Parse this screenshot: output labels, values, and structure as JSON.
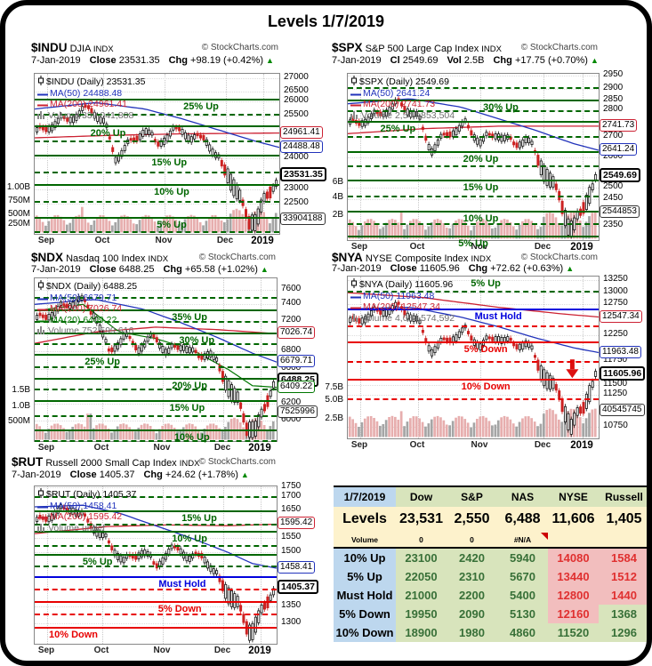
{
  "title": "Levels 1/7/2019",
  "colors": {
    "level_up": "#006600",
    "level_down": "#e80000",
    "must_hold": "#0000dd",
    "ma50": "#2233bb",
    "ma200": "#cc2233",
    "ma20": "#007700",
    "candle_down": "#cc2222",
    "vol_pink": "#e7aeae",
    "vol_gray": "#a5a5a5",
    "table_green_text": "#387038",
    "table_red_text": "#e03030",
    "table_green_bg": "#d8e4bc",
    "table_red_bg": "#f2bebe",
    "table_blue_bg": "#bdd7ee",
    "table_yellow_bg": "#fdf2cc"
  },
  "charts": [
    {
      "symbol": "$INDU",
      "name": "DJIA",
      "suffix": "INDX",
      "credit": "© StockCharts.com",
      "date": "7-Jan-2019",
      "stats": [
        {
          "label": "Close",
          "value": "23531.35"
        },
        {
          "label": "Chg",
          "value": "+98.19 (+0.42%)"
        }
      ],
      "arrow": "▲",
      "legend": [
        {
          "text": "$INDU (Daily) 23531.35",
          "color": "#000000",
          "icon": "candlestick-icon"
        },
        {
          "text": "MA(50) 24488.48",
          "color": "#2233bb",
          "icon": "ma-line-icon"
        },
        {
          "text": "MA(200) 24961.41",
          "color": "#cc2233",
          "icon": "ma-line-icon"
        },
        {
          "text": "Volume 339,041,888",
          "color": "#707070",
          "icon": "volume-icon"
        }
      ],
      "levels": [
        {
          "label": "25% Up"
        },
        {
          "label": "20% Up"
        },
        {
          "label": "15% Up"
        },
        {
          "label": "10% Up"
        },
        {
          "label": "5% Up"
        }
      ],
      "yticks": [
        "27000",
        "26500",
        "26000",
        "25500",
        "24000",
        "23000",
        "22500"
      ],
      "callouts": [
        {
          "text": "24961.41",
          "color": "#cc2233"
        },
        {
          "text": "24488.48",
          "color": "#2233bb"
        },
        {
          "text": "23531.35",
          "color": "#000000",
          "bold": true
        },
        {
          "text": "33904188",
          "color": "#333333"
        }
      ],
      "vticks": [
        "1.00B",
        "750M",
        "500M",
        "250M"
      ],
      "xticks": [
        "Sep",
        "Oct",
        "Nov",
        "Dec",
        "2019"
      ]
    },
    {
      "symbol": "$SPX",
      "name": "S&P 500 Large Cap Index",
      "suffix": "INDX",
      "credit": "© StockCharts.com",
      "date": "7-Jan-2019",
      "stats": [
        {
          "label": "Cl",
          "value": "2549.69"
        },
        {
          "label": "Vol",
          "value": "2.5B"
        },
        {
          "label": "Chg",
          "value": "+17.75 (+0.70%)"
        }
      ],
      "arrow": "▲",
      "legend": [
        {
          "text": "$SPX (Daily) 2549.69",
          "color": "#000000",
          "icon": "candlestick-icon"
        },
        {
          "text": "MA(50) 2641.24",
          "color": "#2233bb",
          "icon": "ma-line-icon"
        },
        {
          "text": "MA(200) 2741.73",
          "color": "#cc2233",
          "icon": "ma-line-icon"
        },
        {
          "text": "Volume 2,544,853,504",
          "color": "#707070",
          "icon": "volume-icon"
        }
      ],
      "levels": [
        {
          "label": "30% Up"
        },
        {
          "label": "25% Up"
        },
        {
          "label": "20% Up"
        },
        {
          "label": "15% Up"
        },
        {
          "label": "10% Up"
        },
        {
          "label": "5% Up"
        }
      ],
      "yticks": [
        "2950",
        "2900",
        "2850",
        "2800",
        "2700",
        "2600",
        "2500",
        "2450",
        "2350"
      ],
      "callouts": [
        {
          "text": "2741.73",
          "color": "#cc2233"
        },
        {
          "text": "2641.24",
          "color": "#2233bb"
        },
        {
          "text": "2549.69",
          "color": "#000000",
          "bold": true
        },
        {
          "text": "2544853",
          "color": "#333333"
        }
      ],
      "vticks": [
        "6B",
        "4B",
        "2B"
      ],
      "xticks": [
        "Sep",
        "Oct",
        "Nov",
        "Dec",
        "2019"
      ]
    },
    {
      "symbol": "$NDX",
      "name": "Nasdaq 100 Index",
      "suffix": "INDX",
      "credit": "© StockCharts.com",
      "date": "7-Jan-2019",
      "stats": [
        {
          "label": "Close",
          "value": "6488.25"
        },
        {
          "label": "Chg",
          "value": "+65.58 (+1.02%)"
        }
      ],
      "arrow": "▲",
      "legend": [
        {
          "text": "$NDX (Daily) 6488.25",
          "color": "#000000",
          "icon": "candlestick-icon"
        },
        {
          "text": "MA(50) 6679.71",
          "color": "#2233bb",
          "icon": "ma-line-icon"
        },
        {
          "text": "MA(200) 7026.74",
          "color": "#cc2233",
          "icon": "ma-line-icon"
        },
        {
          "text": "MA(20) 6409.22",
          "color": "#007700",
          "icon": "ma-line-icon"
        },
        {
          "text": "Volume 752,599,616",
          "color": "#707070",
          "icon": "volume-icon"
        }
      ],
      "levels": [
        {
          "label": "35% Up"
        },
        {
          "label": "30% Up"
        },
        {
          "label": "25% Up"
        },
        {
          "label": "20% Up"
        },
        {
          "label": "15% Up"
        },
        {
          "label": "10% Up"
        }
      ],
      "yticks": [
        "7600",
        "7400",
        "7200",
        "6800",
        "6600",
        "6200",
        "6000"
      ],
      "callouts": [
        {
          "text": "7026.74",
          "color": "#cc2233"
        },
        {
          "text": "6679.71",
          "color": "#2233bb"
        },
        {
          "text": "6488.25",
          "color": "#000000",
          "bold": true
        },
        {
          "text": "6409.22",
          "color": "#007700"
        },
        {
          "text": "7525996",
          "color": "#333333"
        }
      ],
      "vticks": [
        "1.5B",
        "1.0B",
        "500M"
      ],
      "xticks": [
        "Sep",
        "Oct",
        "Nov",
        "Dec",
        "2019"
      ]
    },
    {
      "symbol": "$NYA",
      "name": "NYSE Composite Index",
      "suffix": "INDX",
      "credit": "© StockCharts.com",
      "date": "7-Jan-2019",
      "stats": [
        {
          "label": "Close",
          "value": "11605.96"
        },
        {
          "label": "Chg",
          "value": "+72.62 (+0.63%)"
        }
      ],
      "arrow": "▲",
      "legend": [
        {
          "text": "$NYA (Daily) 11605.96",
          "color": "#000000",
          "icon": "candlestick-icon"
        },
        {
          "text": "MA(50) 11963.48",
          "color": "#2233bb",
          "icon": "ma-line-icon"
        },
        {
          "text": "MA(200) 12547.34",
          "color": "#cc2233",
          "icon": "ma-line-icon"
        },
        {
          "text": "Volume 4,054,574,592",
          "color": "#707070",
          "icon": "volume-icon"
        }
      ],
      "levels": [
        {
          "label": "5% Up"
        },
        {
          "label": "Must Hold"
        },
        {
          "label": "5% Down"
        },
        {
          "label": "10% Down"
        }
      ],
      "yticks": [
        "13250",
        "13000",
        "12750",
        "12250",
        "11750",
        "11500",
        "11250",
        "10750"
      ],
      "callouts": [
        {
          "text": "12547.34",
          "color": "#cc2233"
        },
        {
          "text": "11963.48",
          "color": "#2233bb"
        },
        {
          "text": "11605.96",
          "color": "#000000",
          "bold": true
        },
        {
          "text": "40545745",
          "color": "#333333"
        }
      ],
      "vticks": [
        "7.5B",
        "5.0B",
        "2.5B"
      ],
      "xticks": [
        "Sep",
        "Oct",
        "Nov",
        "Dec",
        "2019"
      ]
    },
    {
      "symbol": "$RUT",
      "name": "Russell 2000 Small Cap Index",
      "suffix": "INDX",
      "credit": "© StockCharts.com",
      "date": "7-Jan-2019",
      "stats": [
        {
          "label": "Close",
          "value": "1405.37"
        },
        {
          "label": "Chg",
          "value": "+24.62 (+1.78%)"
        }
      ],
      "arrow": "▲",
      "legend": [
        {
          "text": "$RUT (Daily) 1405.37",
          "color": "#000000",
          "icon": "candlestick-icon"
        },
        {
          "text": "MA(50) 1458.41",
          "color": "#2233bb",
          "icon": "ma-line-icon"
        },
        {
          "text": "MA(200) 1595.42",
          "color": "#cc2233",
          "icon": "ma-line-icon"
        },
        {
          "text": "Volume undef",
          "color": "#707070",
          "icon": "volume-icon"
        }
      ],
      "levels": [
        {
          "label": "15% Up"
        },
        {
          "label": "10% Up"
        },
        {
          "label": "5% Up"
        },
        {
          "label": "Must Hold"
        },
        {
          "label": "5% Down"
        },
        {
          "label": "10% Down"
        }
      ],
      "yticks": [
        "1750",
        "1700",
        "1650",
        "1550",
        "1500",
        "1350",
        "1300"
      ],
      "callouts": [
        {
          "text": "1595.42",
          "color": "#cc2233"
        },
        {
          "text": "1458.41",
          "color": "#2233bb"
        },
        {
          "text": "1405.37",
          "color": "#000000",
          "bold": true
        }
      ],
      "vticks": [],
      "xticks": [
        "Sep",
        "Oct",
        "Nov",
        "Dec",
        "2019"
      ]
    }
  ],
  "table": {
    "header": {
      "date": "1/7/2019",
      "cols": [
        "Dow",
        "S&P",
        "NAS",
        "NYSE",
        "Russell"
      ]
    },
    "levels_row": {
      "label": "Levels",
      "values": [
        "23,531",
        "2,550",
        "6,488",
        "11,606",
        "1,405"
      ]
    },
    "volume_row": {
      "label": "Volume",
      "values": [
        "0",
        "0",
        "#N/A",
        "",
        ""
      ],
      "flag_col": 2
    },
    "rows": [
      {
        "label": "10% Up",
        "cells": [
          {
            "v": "23100",
            "c": "g"
          },
          {
            "v": "2420",
            "c": "g"
          },
          {
            "v": "5940",
            "c": "g"
          },
          {
            "v": "14080",
            "c": "r"
          },
          {
            "v": "1584",
            "c": "r"
          }
        ]
      },
      {
        "label": "5% Up",
        "cells": [
          {
            "v": "22050",
            "c": "g"
          },
          {
            "v": "2310",
            "c": "g"
          },
          {
            "v": "5670",
            "c": "g"
          },
          {
            "v": "13440",
            "c": "r"
          },
          {
            "v": "1512",
            "c": "r"
          }
        ]
      },
      {
        "label": "Must Hold",
        "cells": [
          {
            "v": "21000",
            "c": "g"
          },
          {
            "v": "2200",
            "c": "g"
          },
          {
            "v": "5400",
            "c": "g"
          },
          {
            "v": "12800",
            "c": "r"
          },
          {
            "v": "1440",
            "c": "r"
          }
        ]
      },
      {
        "label": "5% Down",
        "cells": [
          {
            "v": "19950",
            "c": "g"
          },
          {
            "v": "2090",
            "c": "g"
          },
          {
            "v": "5130",
            "c": "g"
          },
          {
            "v": "12160",
            "c": "r"
          },
          {
            "v": "1368",
            "c": "g"
          }
        ]
      },
      {
        "label": "10% Down",
        "cells": [
          {
            "v": "18900",
            "c": "g"
          },
          {
            "v": "1980",
            "c": "g"
          },
          {
            "v": "4860",
            "c": "g"
          },
          {
            "v": "11520",
            "c": "g"
          },
          {
            "v": "1296",
            "c": "g"
          }
        ]
      }
    ]
  },
  "chart_data": [
    {
      "type": "line",
      "subtype": "candlestick-with-overlays",
      "title": "$INDU DJIA (Daily)",
      "date": "7-Jan-2019",
      "close": 23531.35,
      "change": 98.19,
      "change_pct": 0.42,
      "ma50": 24488.48,
      "ma200": 24961.41,
      "volume": 339041888,
      "x": [
        "Sep",
        "Oct",
        "Nov",
        "Dec",
        "2019"
      ],
      "ylim": [
        22100,
        27200
      ],
      "volume_axis": [
        "250M",
        "500M",
        "750M",
        "1.00B"
      ],
      "level_lines": [
        "25% Up",
        "20% Up",
        "15% Up",
        "10% Up",
        "5% Up"
      ],
      "grid": true,
      "legend_position": "top-left"
    },
    {
      "type": "line",
      "subtype": "candlestick-with-overlays",
      "title": "$SPX S&P 500 Large Cap Index (Daily)",
      "date": "7-Jan-2019",
      "close": 2549.69,
      "change": 17.75,
      "change_pct": 0.7,
      "ma50": 2641.24,
      "ma200": 2741.73,
      "volume": 2544853504,
      "x": [
        "Sep",
        "Oct",
        "Nov",
        "Dec",
        "2019"
      ],
      "ylim": [
        2330,
        2960
      ],
      "volume_axis": [
        "2B",
        "4B",
        "6B"
      ],
      "level_lines": [
        "30% Up",
        "25% Up",
        "20% Up",
        "15% Up",
        "10% Up",
        "5% Up"
      ],
      "grid": true,
      "legend_position": "top-left"
    },
    {
      "type": "line",
      "subtype": "candlestick-with-overlays",
      "title": "$NDX Nasdaq 100 Index (Daily)",
      "date": "7-Jan-2019",
      "close": 6488.25,
      "change": 65.58,
      "change_pct": 1.02,
      "ma50": 6679.71,
      "ma200": 7026.74,
      "ma20": 6409.22,
      "volume": 752599616,
      "x": [
        "Sep",
        "Oct",
        "Nov",
        "Dec",
        "2019"
      ],
      "ylim": [
        5950,
        7700
      ],
      "volume_axis": [
        "500M",
        "1.0B",
        "1.5B"
      ],
      "level_lines": [
        "35% Up",
        "30% Up",
        "25% Up",
        "20% Up",
        "15% Up",
        "10% Up"
      ],
      "grid": true,
      "legend_position": "top-left"
    },
    {
      "type": "line",
      "subtype": "candlestick-with-overlays",
      "title": "$NYA NYSE Composite Index (Daily)",
      "date": "7-Jan-2019",
      "close": 11605.96,
      "change": 72.62,
      "change_pct": 0.63,
      "ma50": 11963.48,
      "ma200": 12547.34,
      "volume": 4054574592,
      "x": [
        "Sep",
        "Oct",
        "Nov",
        "Dec",
        "2019"
      ],
      "ylim": [
        10650,
        13300
      ],
      "volume_axis": [
        "2.5B",
        "5.0B",
        "7.5B"
      ],
      "level_lines": [
        "5% Up",
        "Must Hold",
        "5% Down",
        "10% Down"
      ],
      "grid": true,
      "legend_position": "top-left"
    },
    {
      "type": "line",
      "subtype": "candlestick-with-overlays",
      "title": "$RUT Russell 2000 Small Cap Index (Daily)",
      "date": "7-Jan-2019",
      "close": 1405.37,
      "change": 24.62,
      "change_pct": 1.78,
      "ma50": 1458.41,
      "ma200": 1595.42,
      "volume": "undef",
      "x": [
        "Sep",
        "Oct",
        "Nov",
        "Dec",
        "2019"
      ],
      "ylim": [
        1280,
        1760
      ],
      "volume_axis": [],
      "level_lines": [
        "15% Up",
        "10% Up",
        "5% Up",
        "Must Hold",
        "5% Down",
        "10% Down"
      ],
      "grid": true,
      "legend_position": "top-left"
    },
    {
      "type": "table",
      "columns": [
        "1/7/2019",
        "Dow",
        "S&P",
        "NAS",
        "NYSE",
        "Russell"
      ],
      "rows": [
        [
          "Levels",
          23531,
          2550,
          6488,
          11606,
          1405
        ],
        [
          "Volume",
          "0",
          "0",
          "#N/A",
          "",
          ""
        ],
        [
          "10% Up",
          23100,
          2420,
          5940,
          14080,
          1584
        ],
        [
          "5% Up",
          22050,
          2310,
          5670,
          13440,
          1512
        ],
        [
          "Must Hold",
          21000,
          2200,
          5400,
          12800,
          1440
        ],
        [
          "5% Down",
          19950,
          2090,
          5130,
          12160,
          1368
        ],
        [
          "10% Down",
          18900,
          1980,
          4860,
          11520,
          1296
        ]
      ]
    }
  ]
}
